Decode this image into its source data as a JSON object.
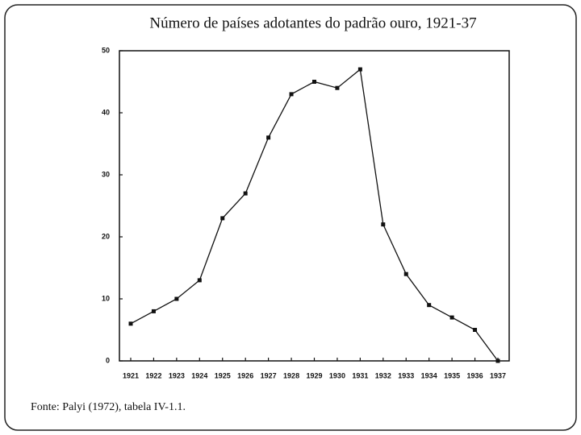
{
  "chart_data": {
    "type": "line",
    "title": "Número de países adotantes do padrão ouro, 1921-37",
    "source": "Fonte: Palyi (1972), tabela IV-1.1.",
    "categories": [
      "1921",
      "1922",
      "1923",
      "1924",
      "1925",
      "1926",
      "1927",
      "1928",
      "1929",
      "1930",
      "1931",
      "1932",
      "1933",
      "1934",
      "1935",
      "1936",
      "1937"
    ],
    "values": [
      6,
      8,
      10,
      13,
      23,
      27,
      36,
      43,
      45,
      44,
      47,
      22,
      14,
      9,
      7,
      5,
      0
    ],
    "color": "#111111",
    "ylim": [
      0,
      50
    ],
    "yticks": [
      0,
      10,
      20,
      30,
      40,
      50
    ]
  }
}
